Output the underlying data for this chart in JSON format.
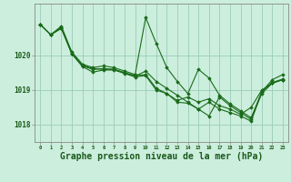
{
  "background_color": "#cceedd",
  "grid_color": "#99ccbb",
  "line_color": "#1a6b1a",
  "marker_color": "#1a6b1a",
  "xlabel": "Graphe pression niveau de la mer (hPa)",
  "xlabel_fontsize": 7,
  "yticks": [
    1018,
    1019,
    1020
  ],
  "xticks": [
    0,
    1,
    2,
    3,
    4,
    5,
    6,
    7,
    8,
    9,
    10,
    11,
    12,
    13,
    14,
    15,
    16,
    17,
    18,
    19,
    20,
    21,
    22,
    23
  ],
  "ylim": [
    1017.5,
    1021.5
  ],
  "xlim": [
    -0.5,
    23.5
  ],
  "series": [
    [
      1020.9,
      1020.6,
      1020.85,
      1020.1,
      1019.75,
      1019.65,
      1019.7,
      1019.65,
      1019.55,
      1019.45,
      1021.1,
      1020.35,
      1019.65,
      1019.25,
      1018.9,
      1019.6,
      1019.35,
      1018.85,
      1018.6,
      1018.4,
      1018.2,
      1018.95,
      1019.3,
      1019.45
    ],
    [
      1020.9,
      1020.6,
      1020.8,
      1020.05,
      1019.7,
      1019.6,
      1019.62,
      1019.6,
      1019.5,
      1019.4,
      1019.55,
      1019.25,
      1019.05,
      1018.85,
      1018.65,
      1018.45,
      1018.25,
      1018.8,
      1018.55,
      1018.35,
      1018.15,
      1018.9,
      1019.2,
      1019.3
    ],
    [
      1020.9,
      1020.6,
      1020.82,
      1020.05,
      1019.72,
      1019.62,
      1019.6,
      1019.6,
      1019.5,
      1019.42,
      1019.45,
      1019.05,
      1018.9,
      1018.7,
      1018.8,
      1018.65,
      1018.75,
      1018.55,
      1018.45,
      1018.3,
      1018.5,
      1019.0,
      1019.2,
      1019.3
    ],
    [
      1020.9,
      1020.6,
      1020.78,
      1020.05,
      1019.68,
      1019.52,
      1019.58,
      1019.58,
      1019.48,
      1019.38,
      1019.42,
      1019.0,
      1018.9,
      1018.65,
      1018.62,
      1018.45,
      1018.65,
      1018.45,
      1018.35,
      1018.25,
      1018.1,
      1018.95,
      1019.22,
      1019.32
    ]
  ]
}
